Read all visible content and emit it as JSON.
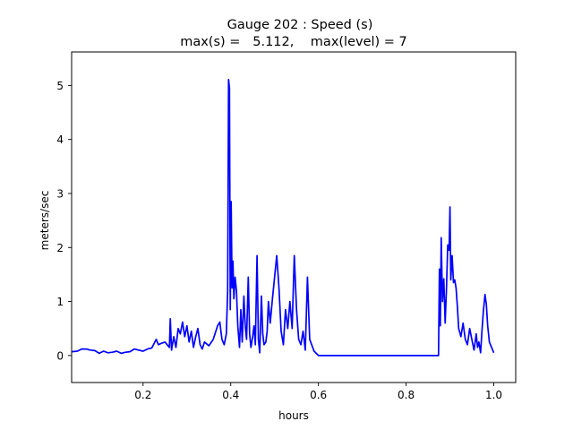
{
  "chart_data": {
    "type": "line",
    "title_line1": "Gauge 202 : Speed (s)",
    "title_line2": "max(s) =   5.112,    max(level) = 7",
    "xlabel": "hours",
    "ylabel": "meters/sec",
    "xlim": [
      0.037,
      1.05
    ],
    "ylim": [
      -0.5,
      5.62
    ],
    "xticks": [
      0.2,
      0.4,
      0.6,
      0.8,
      1.0
    ],
    "xtick_labels": [
      "0.2",
      "0.4",
      "0.6",
      "0.8",
      "1.0"
    ],
    "yticks": [
      0,
      1,
      2,
      3,
      4,
      5
    ],
    "ytick_labels": [
      "0",
      "1",
      "2",
      "3",
      "4",
      "5"
    ],
    "grid": false,
    "series": [
      {
        "color": "#0000ff",
        "x": [
          0.037,
          0.05,
          0.06,
          0.07,
          0.08,
          0.09,
          0.1,
          0.11,
          0.12,
          0.13,
          0.14,
          0.15,
          0.16,
          0.17,
          0.18,
          0.19,
          0.2,
          0.21,
          0.22,
          0.23,
          0.235,
          0.24,
          0.25,
          0.26,
          0.262,
          0.265,
          0.27,
          0.275,
          0.28,
          0.285,
          0.29,
          0.295,
          0.3,
          0.305,
          0.31,
          0.315,
          0.32,
          0.325,
          0.33,
          0.335,
          0.34,
          0.35,
          0.36,
          0.37,
          0.375,
          0.38,
          0.385,
          0.39,
          0.393,
          0.395,
          0.397,
          0.399,
          0.401,
          0.403,
          0.405,
          0.407,
          0.41,
          0.413,
          0.416,
          0.42,
          0.423,
          0.426,
          0.43,
          0.433,
          0.436,
          0.44,
          0.443,
          0.446,
          0.45,
          0.453,
          0.456,
          0.46,
          0.463,
          0.466,
          0.47,
          0.473,
          0.476,
          0.48,
          0.483,
          0.486,
          0.49,
          0.495,
          0.5,
          0.505,
          0.51,
          0.515,
          0.52,
          0.525,
          0.53,
          0.535,
          0.54,
          0.545,
          0.55,
          0.555,
          0.56,
          0.565,
          0.57,
          0.575,
          0.58,
          0.59,
          0.6,
          0.605,
          0.7,
          0.8,
          0.874,
          0.876,
          0.878,
          0.88,
          0.883,
          0.886,
          0.889,
          0.892,
          0.895,
          0.898,
          0.9,
          0.902,
          0.905,
          0.908,
          0.911,
          0.914,
          0.917,
          0.92,
          0.925,
          0.93,
          0.935,
          0.94,
          0.945,
          0.95,
          0.955,
          0.96,
          0.963,
          0.966,
          0.97,
          0.973,
          0.976,
          0.98,
          0.983,
          0.986,
          0.99,
          0.995,
          1.0
        ],
        "y": [
          0.07,
          0.08,
          0.12,
          0.12,
          0.1,
          0.09,
          0.04,
          0.08,
          0.05,
          0.06,
          0.08,
          0.04,
          0.06,
          0.07,
          0.12,
          0.1,
          0.08,
          0.12,
          0.14,
          0.3,
          0.2,
          0.22,
          0.25,
          0.15,
          0.68,
          0.1,
          0.35,
          0.15,
          0.5,
          0.4,
          0.62,
          0.35,
          0.55,
          0.25,
          0.45,
          0.15,
          0.35,
          0.5,
          0.2,
          0.12,
          0.25,
          0.18,
          0.3,
          0.55,
          0.62,
          0.3,
          0.2,
          0.4,
          1.2,
          5.11,
          4.95,
          0.85,
          2.85,
          1.25,
          1.75,
          1.05,
          1.45,
          1.2,
          0.55,
          0.15,
          0.85,
          0.25,
          1.1,
          0.55,
          0.3,
          1.45,
          0.4,
          0.15,
          0.35,
          0.55,
          0.2,
          1.85,
          0.3,
          0.05,
          1.1,
          0.4,
          0.2,
          0.25,
          0.45,
          1.0,
          0.6,
          1.05,
          1.45,
          1.85,
          1.25,
          0.45,
          0.2,
          0.85,
          0.5,
          1.0,
          0.5,
          1.85,
          0.85,
          0.3,
          0.2,
          0.45,
          0.1,
          1.45,
          0.3,
          0.08,
          0.0,
          0.0,
          0.0,
          0.0,
          0.0,
          1.6,
          0.55,
          2.18,
          1.0,
          1.42,
          0.6,
          1.2,
          2.05,
          1.95,
          2.75,
          1.4,
          1.85,
          1.35,
          1.4,
          1.25,
          0.9,
          0.5,
          0.35,
          0.6,
          0.3,
          0.2,
          0.5,
          0.3,
          0.1,
          0.4,
          0.15,
          0.25,
          0.05,
          0.45,
          0.8,
          1.13,
          0.95,
          0.55,
          0.25,
          0.15,
          0.05
        ]
      }
    ]
  }
}
